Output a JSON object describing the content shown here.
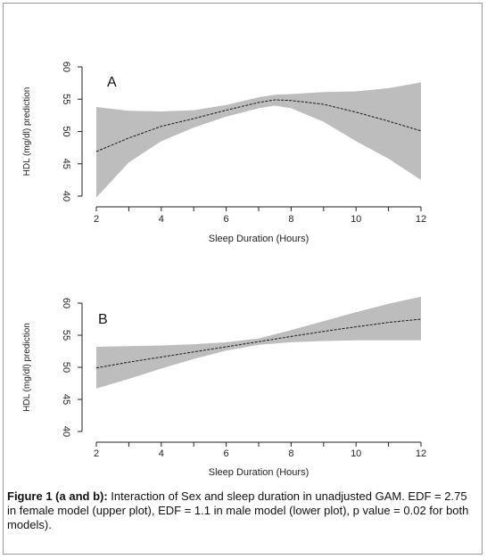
{
  "chart_data": [
    {
      "type": "line",
      "panel_label": "A",
      "xlabel": "Sleep Duration (Hours)",
      "ylabel": "HDL (mg/dl) prediction",
      "xlim": [
        2,
        12
      ],
      "ylim": [
        40,
        60
      ],
      "x_ticks": [
        2,
        4,
        6,
        8,
        10,
        12
      ],
      "y_ticks": [
        40,
        45,
        50,
        55,
        60
      ],
      "grid": false,
      "series": [
        {
          "x": [
            2,
            3,
            4,
            5,
            6,
            7,
            7.5,
            8,
            9,
            10,
            11,
            12
          ],
          "values": [
            46.9,
            49.0,
            50.8,
            52.0,
            53.3,
            54.5,
            54.9,
            54.8,
            54.2,
            53.0,
            51.6,
            50.1
          ],
          "lower": [
            39.8,
            45.2,
            48.5,
            50.6,
            52.3,
            53.6,
            54.0,
            53.6,
            51.5,
            48.5,
            45.8,
            42.5
          ],
          "upper": [
            53.8,
            53.2,
            53.1,
            53.3,
            54.1,
            55.3,
            55.7,
            55.8,
            56.1,
            56.2,
            56.7,
            57.6
          ]
        }
      ]
    },
    {
      "type": "line",
      "panel_label": "B",
      "xlabel": "Sleep Duration (Hours)",
      "ylabel": "HDL (mg/dl) prediction",
      "xlim": [
        2,
        12
      ],
      "ylim": [
        40,
        60
      ],
      "x_ticks": [
        2,
        4,
        6,
        8,
        10,
        12
      ],
      "y_ticks": [
        40,
        45,
        50,
        55,
        60
      ],
      "grid": false,
      "series": [
        {
          "x": [
            2,
            3,
            4,
            5,
            6,
            7,
            8,
            9,
            10,
            11,
            12
          ],
          "values": [
            49.9,
            50.8,
            51.6,
            52.4,
            53.2,
            54.0,
            54.8,
            55.6,
            56.3,
            57.0,
            57.5
          ],
          "lower": [
            46.7,
            48.2,
            49.8,
            51.3,
            52.6,
            53.5,
            53.9,
            54.1,
            54.2,
            54.2,
            54.2
          ],
          "upper": [
            53.2,
            53.3,
            53.4,
            53.6,
            53.9,
            54.5,
            55.8,
            57.2,
            58.6,
            59.9,
            61.0
          ]
        }
      ]
    }
  ],
  "caption": {
    "bold": "Figure 1 (a and b):",
    "text": " Interaction of Sex and sleep duration in unadjusted GAM. EDF = 2.75 in female model (upper plot), EDF = 1.1 in male model (lower plot), p value = 0.02 for both models)."
  },
  "colors": {
    "band": "#bdbdbd",
    "line": "#1a1a1a",
    "axis": "#222222"
  }
}
